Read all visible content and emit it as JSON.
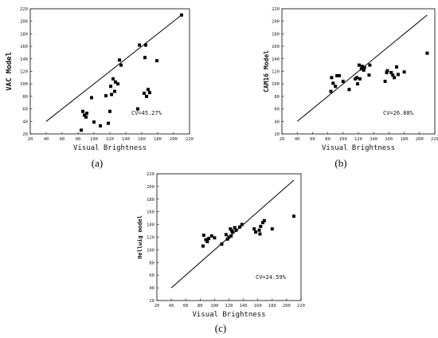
{
  "chart_data": [
    {
      "type": "scatter",
      "panel_label": "(a)",
      "xlabel": "Visual Brightness",
      "ylabel": "VAC Model",
      "xlim": [
        20,
        220
      ],
      "ylim": [
        20,
        220
      ],
      "xticks": [
        20,
        40,
        60,
        80,
        100,
        120,
        140,
        160,
        180,
        200,
        220
      ],
      "yticks": [
        20,
        40,
        60,
        80,
        100,
        120,
        140,
        160,
        180,
        200,
        220
      ],
      "annotation": "CV=45.27%",
      "reference_line": [
        [
          40,
          40
        ],
        [
          210,
          210
        ]
      ],
      "points": [
        [
          84,
          26
        ],
        [
          86,
          56
        ],
        [
          88,
          50
        ],
        [
          90,
          47
        ],
        [
          91,
          53
        ],
        [
          97,
          78
        ],
        [
          100,
          39
        ],
        [
          108,
          33
        ],
        [
          115,
          81
        ],
        [
          118,
          37
        ],
        [
          120,
          56
        ],
        [
          121,
          96
        ],
        [
          122,
          83
        ],
        [
          124,
          108
        ],
        [
          126,
          88
        ],
        [
          127,
          103
        ],
        [
          130,
          100
        ],
        [
          132,
          138
        ],
        [
          134,
          130
        ],
        [
          155,
          60
        ],
        [
          157,
          162
        ],
        [
          163,
          85
        ],
        [
          164,
          142
        ],
        [
          165,
          162
        ],
        [
          166,
          80
        ],
        [
          168,
          91
        ],
        [
          170,
          86
        ],
        [
          179,
          137
        ],
        [
          210,
          210
        ]
      ]
    },
    {
      "type": "scatter",
      "panel_label": "(b)",
      "xlabel": "Visual Brightness",
      "ylabel": "CAM16 Model",
      "xlim": [
        20,
        220
      ],
      "ylim": [
        20,
        220
      ],
      "xticks": [
        20,
        40,
        60,
        80,
        100,
        120,
        140,
        160,
        180,
        200,
        220
      ],
      "yticks": [
        20,
        40,
        60,
        80,
        100,
        120,
        140,
        160,
        180,
        200,
        220
      ],
      "annotation": "CV=26.88%",
      "reference_line": [
        [
          40,
          40
        ],
        [
          210,
          210
        ]
      ],
      "points": [
        [
          84,
          88
        ],
        [
          85,
          110
        ],
        [
          87,
          101
        ],
        [
          90,
          96
        ],
        [
          92,
          113
        ],
        [
          95,
          113
        ],
        [
          100,
          104
        ],
        [
          108,
          91
        ],
        [
          116,
          108
        ],
        [
          118,
          110
        ],
        [
          119,
          100
        ],
        [
          121,
          130
        ],
        [
          122,
          108
        ],
        [
          124,
          124
        ],
        [
          125,
          128
        ],
        [
          127,
          122
        ],
        [
          128,
          126
        ],
        [
          134,
          114
        ],
        [
          135,
          130
        ],
        [
          155,
          104
        ],
        [
          157,
          118
        ],
        [
          158,
          121
        ],
        [
          163,
          118
        ],
        [
          165,
          114
        ],
        [
          167,
          110
        ],
        [
          170,
          127
        ],
        [
          172,
          115
        ],
        [
          180,
          119
        ],
        [
          210,
          149
        ]
      ]
    },
    {
      "type": "scatter",
      "panel_label": "(c)",
      "xlabel": "Visual Brightness",
      "ylabel": "Hellwig model",
      "xlim": [
        20,
        220
      ],
      "ylim": [
        20,
        220
      ],
      "xticks": [
        20,
        40,
        60,
        80,
        100,
        120,
        140,
        160,
        180,
        200,
        220
      ],
      "yticks": [
        20,
        40,
        60,
        80,
        100,
        120,
        140,
        160,
        180,
        200,
        220
      ],
      "annotation": "CV=24.59%",
      "reference_line": [
        [
          40,
          40
        ],
        [
          210,
          210
        ]
      ],
      "points": [
        [
          84,
          106
        ],
        [
          85,
          123
        ],
        [
          88,
          116
        ],
        [
          90,
          113
        ],
        [
          92,
          118
        ],
        [
          96,
          122
        ],
        [
          100,
          119
        ],
        [
          110,
          109
        ],
        [
          116,
          124
        ],
        [
          118,
          117
        ],
        [
          120,
          120
        ],
        [
          122,
          133
        ],
        [
          123,
          122
        ],
        [
          124,
          130
        ],
        [
          125,
          128
        ],
        [
          128,
          135
        ],
        [
          130,
          131
        ],
        [
          135,
          136
        ],
        [
          138,
          140
        ],
        [
          155,
          133
        ],
        [
          157,
          128
        ],
        [
          162,
          131
        ],
        [
          163,
          125
        ],
        [
          164,
          137
        ],
        [
          167,
          143
        ],
        [
          169,
          146
        ],
        [
          180,
          133
        ],
        [
          210,
          153
        ]
      ]
    }
  ]
}
